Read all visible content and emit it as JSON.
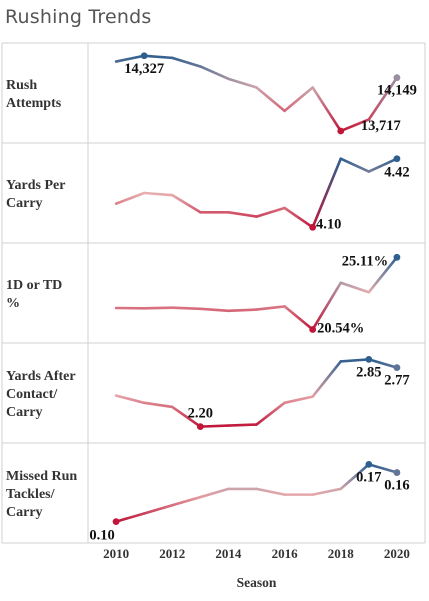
{
  "title": "Rushing Trends",
  "chart_data": {
    "type": "line",
    "title": "Rushing Trends",
    "xlabel": "Season",
    "x": [
      2010,
      2011,
      2012,
      2013,
      2014,
      2015,
      2016,
      2017,
      2018,
      2019,
      2020
    ],
    "xlim": [
      2009.0,
      2021.0
    ],
    "x_ticks": [
      2010,
      2012,
      2014,
      2016,
      2018,
      2020
    ],
    "color_scale": {
      "low": "#c0163a",
      "mid": "#e8b0b0",
      "high": "#2f5f8f"
    },
    "grid": "row separators",
    "rows": [
      {
        "label": [
          "Rush",
          "Attempts"
        ],
        "values": [
          14280,
          14327,
          14310,
          14240,
          14140,
          14070,
          13880,
          14070,
          13717,
          13810,
          14149
        ],
        "ylim": [
          13660,
          14390
        ],
        "labels": [
          {
            "index": 1,
            "text": "14,327"
          },
          {
            "index": 8,
            "text": "13,717"
          },
          {
            "index": 10,
            "text": "14,149"
          }
        ]
      },
      {
        "label": [
          "Yards Per",
          "Carry"
        ],
        "values": [
          4.21,
          4.26,
          4.25,
          4.17,
          4.17,
          4.15,
          4.19,
          4.1,
          4.42,
          4.36,
          4.42
        ],
        "ylim": [
          4.05,
          4.47
        ],
        "labels": [
          {
            "index": 7,
            "text": "4.10"
          },
          {
            "index": 10,
            "text": "4.42"
          }
        ]
      },
      {
        "label": [
          "1D or TD",
          "%"
        ],
        "values": [
          21.9,
          21.88,
          21.92,
          21.85,
          21.72,
          21.8,
          22.0,
          20.54,
          23.5,
          22.9,
          25.11
        ],
        "ylim": [
          20.0,
          25.7
        ],
        "labels": [
          {
            "index": 7,
            "text": "20.54%"
          },
          {
            "index": 10,
            "text": "25.11%"
          }
        ]
      },
      {
        "label": [
          "Yards After",
          "Contact/",
          "Carry"
        ],
        "values": [
          2.5,
          2.43,
          2.39,
          2.2,
          2.21,
          2.22,
          2.43,
          2.49,
          2.83,
          2.85,
          2.77
        ],
        "ylim": [
          2.09,
          2.96
        ],
        "labels": [
          {
            "index": 3,
            "text": "2.20"
          },
          {
            "index": 9,
            "text": "2.85"
          },
          {
            "index": 10,
            "text": "2.77"
          }
        ]
      },
      {
        "label": [
          "Missed Run",
          "Tackles/",
          "Carry"
        ],
        "values": [
          0.1,
          0.11,
          0.12,
          0.13,
          0.14,
          0.14,
          0.133,
          0.133,
          0.14,
          0.17,
          0.16
        ],
        "ylim": [
          0.08,
          0.19
        ],
        "labels": [
          {
            "index": 0,
            "text": "0.10"
          },
          {
            "index": 9,
            "text": "0.17"
          },
          {
            "index": 10,
            "text": "0.16"
          }
        ]
      }
    ]
  }
}
